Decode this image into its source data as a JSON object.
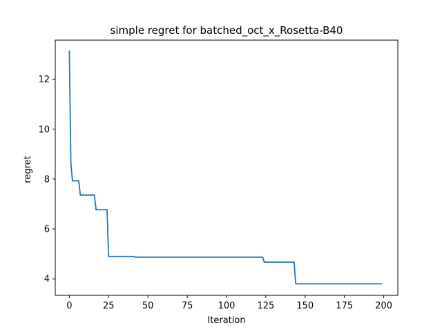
{
  "chart_data": {
    "type": "line",
    "title": "simple regret for batched_oct_x_Rosetta-B40",
    "xlabel": "Iteration",
    "ylabel": "regret",
    "xlim": [
      -8.95,
      208.95
    ],
    "ylim": [
      3.34,
      13.57
    ],
    "xticks": [
      0,
      25,
      50,
      75,
      100,
      125,
      150,
      175,
      200
    ],
    "yticks": [
      4,
      6,
      8,
      10,
      12
    ],
    "grid": false,
    "legend": "none",
    "color": "#1f77b4",
    "series": [
      {
        "x": [
          0,
          1,
          2,
          6,
          7,
          16,
          17,
          24,
          25,
          41,
          42,
          123,
          124,
          143,
          144,
          199
        ],
        "y": [
          13.15,
          8.62,
          7.93,
          7.93,
          7.36,
          7.36,
          6.77,
          6.77,
          4.9,
          4.9,
          4.87,
          4.87,
          4.67,
          4.67,
          3.8,
          3.8
        ]
      }
    ]
  }
}
